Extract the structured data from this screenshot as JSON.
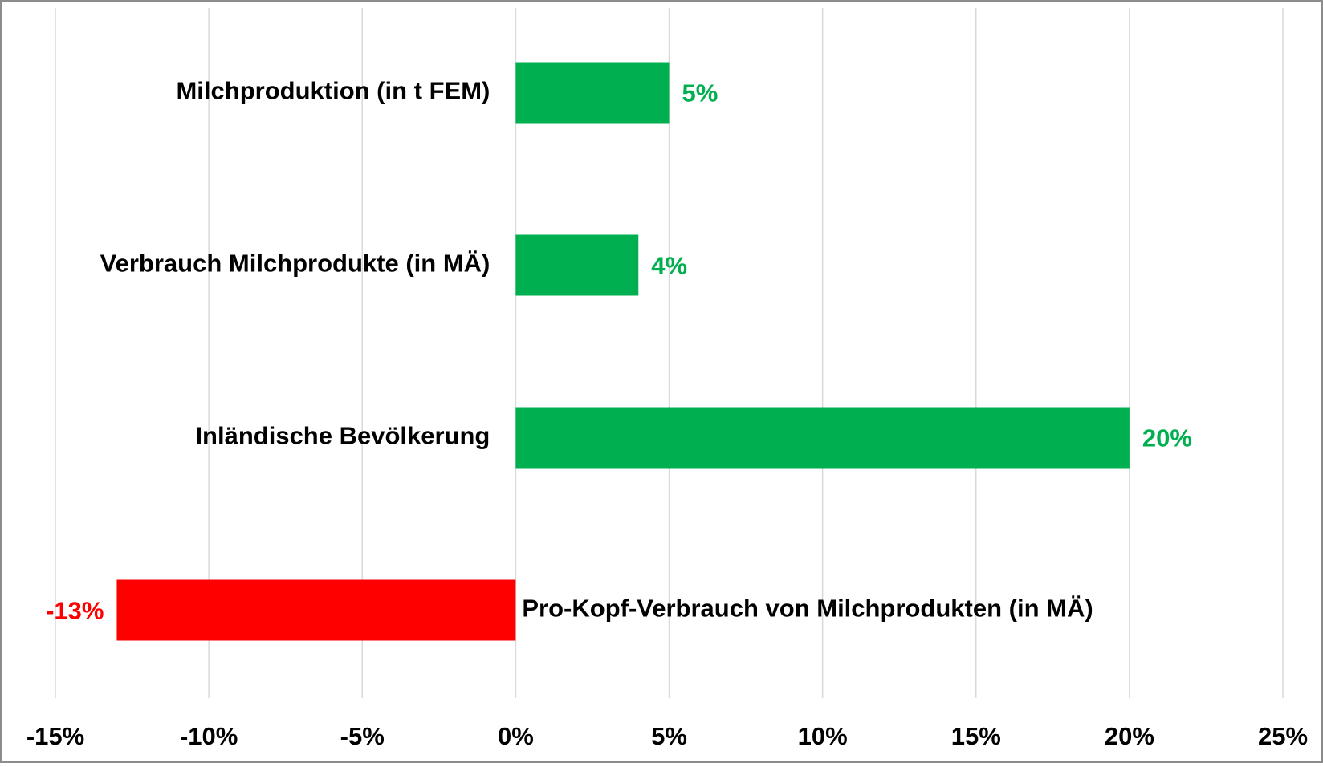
{
  "chart_data": {
    "type": "bar",
    "orientation": "horizontal",
    "categories": [
      "Milchproduktion (in t FEM)",
      "Verbrauch Milchprodukte (in MÄ)",
      "Inländische Bevölkerung",
      "Pro-Kopf-Verbrauch von Milchprodukten (in MÄ)"
    ],
    "values": [
      5,
      4,
      20,
      -13
    ],
    "value_labels": [
      "5%",
      "4%",
      "20%",
      "-13%"
    ],
    "colors": [
      "#00b050",
      "#00b050",
      "#00b050",
      "#ff0000"
    ],
    "xlim": [
      -15,
      25
    ],
    "xticks": [
      {
        "value": -15,
        "label": "-15%"
      },
      {
        "value": -10,
        "label": "-10%"
      },
      {
        "value": -5,
        "label": "-5%"
      },
      {
        "value": 0,
        "label": "0%"
      },
      {
        "value": 5,
        "label": "5%"
      },
      {
        "value": 10,
        "label": "10%"
      },
      {
        "value": 15,
        "label": "15%"
      },
      {
        "value": 20,
        "label": "20%"
      },
      {
        "value": 25,
        "label": "25%"
      }
    ],
    "grid": true
  }
}
